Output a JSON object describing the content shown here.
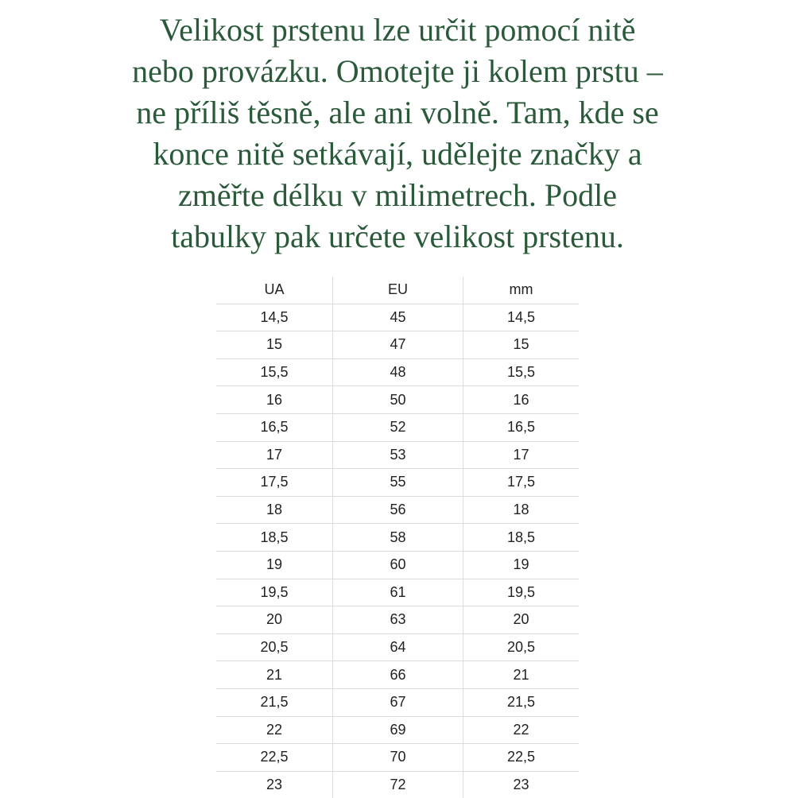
{
  "intro_lines": [
    "Velikost prstenu lze určit pomocí nitě",
    "nebo provázku. Omotejte ji kolem prstu –",
    "ne příliš těsně, ale ani volně. Tam, kde se",
    "konce nitě setkávají, udělejte značky a",
    "změřte délku v milimetrech. Podle",
    "tabulky pak určete velikost prstenu."
  ],
  "colors": {
    "heading_text": "#2b5a3b"
  },
  "size_table": {
    "headers": [
      "UA",
      "EU",
      "mm"
    ],
    "rows": [
      [
        "14,5",
        "45",
        "14,5"
      ],
      [
        "15",
        "47",
        "15"
      ],
      [
        "15,5",
        "48",
        "15,5"
      ],
      [
        "16",
        "50",
        "16"
      ],
      [
        "16,5",
        "52",
        "16,5"
      ],
      [
        "17",
        "53",
        "17"
      ],
      [
        "17,5",
        "55",
        "17,5"
      ],
      [
        "18",
        "56",
        "18"
      ],
      [
        "18,5",
        "58",
        "18,5"
      ],
      [
        "19",
        "60",
        "19"
      ],
      [
        "19,5",
        "61",
        "19,5"
      ],
      [
        "20",
        "63",
        "20"
      ],
      [
        "20,5",
        "64",
        "20,5"
      ],
      [
        "21",
        "66",
        "21"
      ],
      [
        "21,5",
        "67",
        "21,5"
      ],
      [
        "22",
        "69",
        "22"
      ],
      [
        "22,5",
        "70",
        "22,5"
      ],
      [
        "23",
        "72",
        "23"
      ]
    ]
  }
}
